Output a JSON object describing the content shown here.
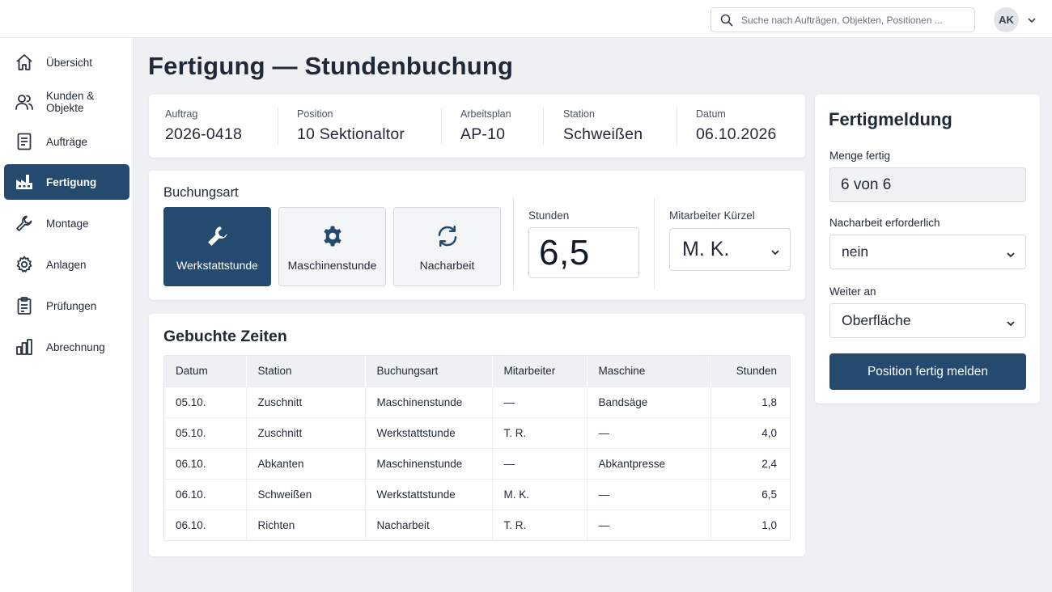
{
  "header": {
    "search_placeholder": "Suche nach Aufträgen, Objekten, Positionen ...",
    "user_initials": "AK"
  },
  "sidebar": {
    "items": [
      {
        "label": "Übersicht",
        "icon": "home-icon"
      },
      {
        "label": "Kunden & Objekte",
        "icon": "users-icon"
      },
      {
        "label": "Aufträge",
        "icon": "document-icon"
      },
      {
        "label": "Fertigung",
        "icon": "factory-icon",
        "active": true
      },
      {
        "label": "Montage",
        "icon": "wrench-icon"
      },
      {
        "label": "Anlagen",
        "icon": "gear-icon"
      },
      {
        "label": "Prüfungen",
        "icon": "clipboard-icon"
      },
      {
        "label": "Abrechnung",
        "icon": "bar-chart-icon"
      }
    ]
  },
  "page": {
    "title": "Fertigung — Stundenbuchung"
  },
  "info": {
    "auftrag_label": "Auftrag",
    "auftrag_value": "2026-0418",
    "position_label": "Position",
    "position_value": "10 Sektionaltor",
    "arbeitsplan_label": "Arbeitsplan",
    "arbeitsplan_value": "AP-10",
    "station_label": "Station",
    "station_value": "Schweißen",
    "datum_label": "Datum",
    "datum_value": "06.10.2026"
  },
  "booking": {
    "section_label": "Buchungsart",
    "types": [
      {
        "label": "Werkstattstunde",
        "icon": "wrench-icon",
        "active": true
      },
      {
        "label": "Maschinenstunde",
        "icon": "gear-icon",
        "active": false
      },
      {
        "label": "Nacharbeit",
        "icon": "refresh-icon",
        "active": false
      }
    ],
    "hours_label": "Stunden",
    "hours_value": "6,5",
    "employee_label": "Mitarbeiter Kürzel",
    "employee_value": "M. K."
  },
  "table": {
    "title": "Gebuchte Zeiten",
    "columns": [
      "Datum",
      "Station",
      "Buchungsart",
      "Mitarbeiter",
      "Maschine",
      "Stunden"
    ],
    "rows": [
      [
        "05.10.",
        "Zuschnitt",
        "Maschinenstunde",
        "—",
        "Bandsäge",
        "1,8"
      ],
      [
        "05.10.",
        "Zuschnitt",
        "Werkstattstunde",
        "T. R.",
        "—",
        "4,0"
      ],
      [
        "06.10.",
        "Abkanten",
        "Maschinenstunde",
        "—",
        "Abkantpresse",
        "2,4"
      ],
      [
        "06.10.",
        "Schweißen",
        "Werkstattstunde",
        "M. K.",
        "—",
        "6,5"
      ],
      [
        "06.10.",
        "Richten",
        "Nacharbeit",
        "T. R.",
        "—",
        "1,0"
      ]
    ]
  },
  "completion": {
    "title": "Fertigmeldung",
    "quantity_label": "Menge fertig",
    "quantity_value": "6 von 6",
    "rework_label": "Nacharbeit erforderlich",
    "rework_value": "nein",
    "next_label": "Weiter an",
    "next_value": "Oberfläche",
    "submit_label": "Position fertig melden"
  },
  "colors": {
    "accent": "#254a6f",
    "background": "#eef0f3"
  }
}
